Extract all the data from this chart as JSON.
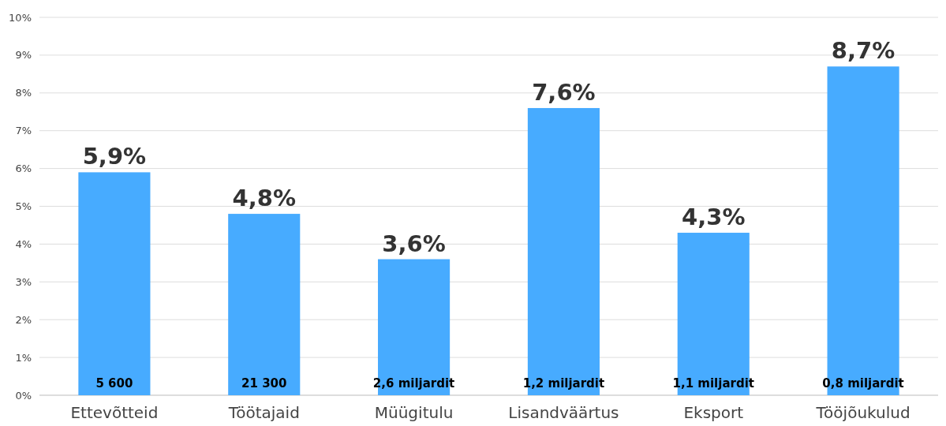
{
  "chart_data": {
    "type": "bar",
    "categories": [
      "Ettevõtteid",
      "Töötajaid",
      "Müügitulu",
      "Lisandväärtus",
      "Eksport",
      "Tööjõukulud"
    ],
    "values": [
      5.9,
      4.8,
      3.6,
      7.6,
      4.3,
      8.7
    ],
    "value_labels": [
      "5,9%",
      "4,8%",
      "3,6%",
      "7,6%",
      "4,3%",
      "8,7%"
    ],
    "color": "#47abff",
    "ylim": [
      0,
      10
    ],
    "yticks": [
      {
        "value": 0,
        "label": "0%"
      },
      {
        "value": 1,
        "label": "1%"
      },
      {
        "value": 2,
        "label": "2%"
      },
      {
        "value": 3,
        "label": "3%"
      },
      {
        "value": 4,
        "label": "4%"
      },
      {
        "value": 5,
        "label": "5%"
      },
      {
        "value": 6,
        "label": "6%"
      },
      {
        "value": 7,
        "label": "7%"
      },
      {
        "value": 8,
        "label": "8%"
      },
      {
        "value": 9,
        "label": "9%"
      },
      {
        "value": 10,
        "label": "10%"
      }
    ],
    "grid": "y",
    "annotations": [
      "5 600",
      "21 300",
      "2,6 miljardit",
      "1,2 miljardit",
      "1,1 miljardit",
      "0,8 miljardit"
    ]
  }
}
